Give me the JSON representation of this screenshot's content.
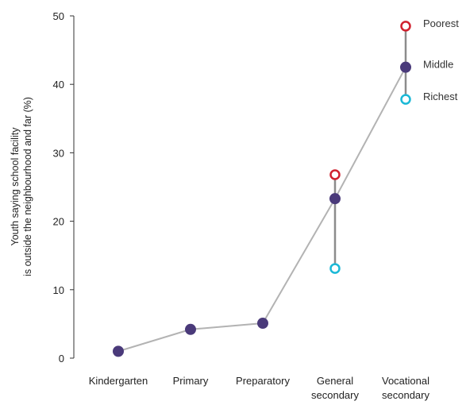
{
  "chart_data": {
    "type": "line",
    "categories": [
      [
        "Kindergarten"
      ],
      [
        "Primary"
      ],
      [
        "Preparatory"
      ],
      [
        "General",
        "secondary"
      ],
      [
        "Vocational",
        "secondary"
      ]
    ],
    "ylabel": [
      "Youth saying school facility",
      "is outside the neighbourhood and far (%)"
    ],
    "ylim": [
      0,
      50
    ],
    "yticks": [
      0,
      10,
      20,
      30,
      40,
      50
    ],
    "grid": false,
    "series": [
      {
        "name": "Middle",
        "values": [
          1,
          4.2,
          5.1,
          23.3,
          42.5
        ],
        "color": "#4a3a7a",
        "marker": "filled"
      },
      {
        "name": "Poorest",
        "values": [
          null,
          null,
          null,
          26.8,
          48.5
        ],
        "color": "#d0212e",
        "marker": "hollow"
      },
      {
        "name": "Richest",
        "values": [
          null,
          null,
          null,
          13.1,
          37.8
        ],
        "color": "#1bb8d6",
        "marker": "hollow"
      }
    ],
    "line_color": "#b3b3b3",
    "range_line_color": "#8c8c8c"
  }
}
